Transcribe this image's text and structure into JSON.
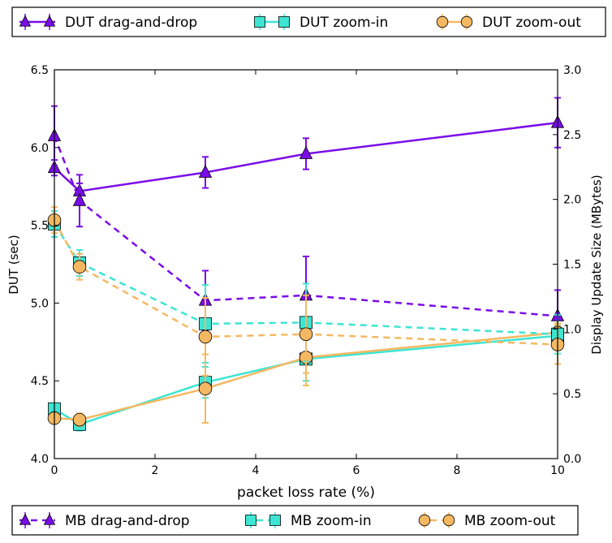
{
  "chart_data": {
    "type": "line",
    "xlabel": "packet loss rate (%)",
    "ylabel": "DUT (sec)",
    "y2label": "Display Update Size (MBytes)",
    "xlim": [
      0,
      10
    ],
    "ylim": [
      4.0,
      6.5
    ],
    "y2lim": [
      0.0,
      3.0
    ],
    "x_ticks": [
      "0",
      "2",
      "4",
      "6",
      "8",
      "10"
    ],
    "y_ticks": [
      "4.0",
      "4.5",
      "5.0",
      "5.5",
      "6.0",
      "6.5"
    ],
    "y2_ticks": [
      "0.0",
      "0.5",
      "1.0",
      "1.5",
      "2.0",
      "2.5",
      "3.0"
    ],
    "grid": false,
    "legend_top": "above plot, one row",
    "legend_bottom": "below plot, one row",
    "colors": {
      "drag": "#7a0ce8",
      "zoomin": "#3de5d2",
      "zoomout": "#f5b862"
    },
    "x": [
      0,
      0.5,
      3,
      5,
      10
    ],
    "series": [
      {
        "name": "DUT drag-and-drop",
        "axis": "left",
        "style": "solid",
        "color": "drag",
        "marker": "triangle",
        "y": [
          5.87,
          5.72,
          5.84,
          5.96,
          6.16
        ],
        "err": [
          0.05,
          0.05,
          0.1,
          0.1,
          0.16
        ]
      },
      {
        "name": "DUT zoom-in",
        "axis": "left",
        "style": "solid",
        "color": "zoomin",
        "marker": "square",
        "y": [
          4.32,
          4.22,
          4.49,
          4.64,
          4.79
        ],
        "err": [
          0.03,
          0.04,
          0.1,
          0.14,
          0.06
        ]
      },
      {
        "name": "DUT zoom-out",
        "axis": "left",
        "style": "solid",
        "color": "zoomout",
        "marker": "circle",
        "y": [
          4.26,
          4.25,
          4.45,
          4.65,
          4.81
        ],
        "err": [
          0.03,
          0.04,
          0.22,
          0.18,
          0.06
        ]
      },
      {
        "name": "MB drag-and-drop",
        "axis": "right",
        "style": "dashed",
        "color": "drag",
        "marker": "triangle",
        "y": [
          2.49,
          1.99,
          1.22,
          1.26,
          1.1
        ],
        "err": [
          0.23,
          0.2,
          0.23,
          0.3,
          0.2
        ]
      },
      {
        "name": "MB zoom-in",
        "axis": "right",
        "style": "dashed",
        "color": "zoomin",
        "marker": "square",
        "y": [
          1.81,
          1.51,
          1.04,
          1.05,
          0.96
        ],
        "err": [
          0.1,
          0.1,
          0.3,
          0.3,
          0.15
        ]
      },
      {
        "name": "MB zoom-out",
        "axis": "right",
        "style": "dashed",
        "color": "zoomout",
        "marker": "circle",
        "y": [
          1.84,
          1.48,
          0.94,
          0.96,
          0.88
        ],
        "err": [
          0.1,
          0.1,
          0.3,
          0.3,
          0.15
        ]
      }
    ]
  }
}
